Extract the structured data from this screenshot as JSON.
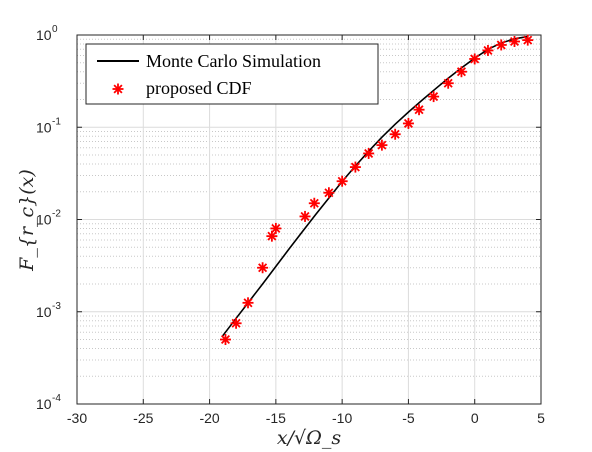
{
  "chart_data": {
    "type": "line",
    "title": "",
    "xlabel": "x/√Ω_s",
    "ylabel": "F_{r_c}(x)",
    "xlim": [
      -30,
      5
    ],
    "ylim": [
      0.0001,
      1
    ],
    "yscale": "log",
    "grid": true,
    "minor_grid": true,
    "legend_position": "top-left",
    "xticks": [
      "-30",
      "-25",
      "-20",
      "-15",
      "-10",
      "-5",
      "0",
      "5"
    ],
    "yticks": [
      {
        "base": "10",
        "exp": "-4"
      },
      {
        "base": "10",
        "exp": "-3"
      },
      {
        "base": "10",
        "exp": "-2"
      },
      {
        "base": "10",
        "exp": "-1"
      },
      {
        "base": "10",
        "exp": "0"
      }
    ],
    "series": [
      {
        "name": "Monte Carlo Simulation",
        "style": "line",
        "color": "#000000",
        "x": [
          -19,
          -18,
          -17,
          -16,
          -15,
          -14,
          -13,
          -12,
          -11,
          -10,
          -9,
          -8,
          -7,
          -6,
          -5,
          -4,
          -3,
          -2,
          -1,
          0,
          1,
          2,
          3,
          4
        ],
        "y": [
          0.00055,
          0.00085,
          0.0013,
          0.002,
          0.0031,
          0.0048,
          0.0074,
          0.0113,
          0.0171,
          0.0258,
          0.038,
          0.055,
          0.078,
          0.108,
          0.146,
          0.195,
          0.258,
          0.34,
          0.44,
          0.56,
          0.7,
          0.82,
          0.91,
          0.96
        ]
      },
      {
        "name": "proposed CDF",
        "style": "marker",
        "marker": "asterisk",
        "color": "#ff0000",
        "x": [
          -18.8,
          -18,
          -17.1,
          -16,
          -15.3,
          -15,
          -12.8,
          -12.1,
          -11,
          -10,
          -9,
          -8,
          -7,
          -6,
          -5,
          -4.2,
          -3.1,
          -2,
          -1,
          0,
          1,
          2,
          3,
          4
        ],
        "y": [
          0.0005,
          0.00075,
          0.00125,
          0.003,
          0.0066,
          0.008,
          0.0108,
          0.015,
          0.0195,
          0.026,
          0.037,
          0.052,
          0.064,
          0.084,
          0.11,
          0.155,
          0.215,
          0.3,
          0.4,
          0.55,
          0.68,
          0.78,
          0.85,
          0.88
        ]
      }
    ]
  }
}
